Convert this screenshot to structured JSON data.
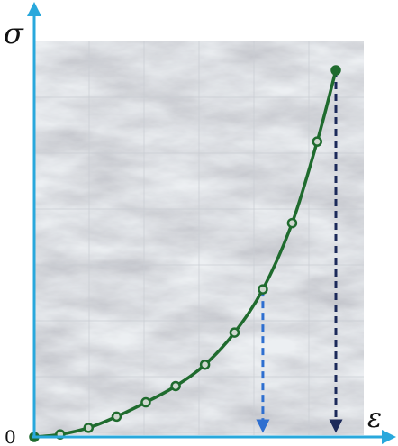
{
  "chart_data": {
    "type": "line",
    "title": "",
    "xlabel": "ε",
    "ylabel": "σ",
    "origin_label": "0",
    "xlim": [
      0,
      1
    ],
    "ylim": [
      0,
      1
    ],
    "grid": true,
    "background": "marble texture",
    "axis_color": "#29a8dc",
    "series": [
      {
        "color": "#1f6b2e",
        "marker": "circle",
        "x": [
          0.0,
          0.086,
          0.18,
          0.273,
          0.37,
          0.469,
          0.566,
          0.664,
          0.758,
          0.855,
          0.938,
          1.0
        ],
        "y": [
          0.0,
          0.005,
          0.018,
          0.04,
          0.068,
          0.1,
          0.142,
          0.205,
          0.29,
          0.42,
          0.58,
          0.72
        ]
      }
    ],
    "drop_lines": [
      {
        "x": 0.758,
        "y": 0.29,
        "color": "#2e6fd0",
        "style": "dashed"
      },
      {
        "x": 1.0,
        "y": 0.72,
        "color": "#1c2a5a",
        "style": "dashed"
      }
    ]
  }
}
